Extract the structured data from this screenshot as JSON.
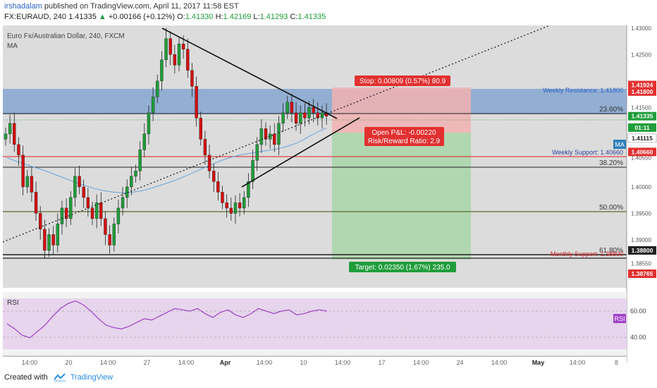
{
  "header": {
    "user": "irshadalam",
    "published_text": "published on TradingView.com, April 11, 2017 11:58 EST",
    "symbol": "FX:EURAUD, 240",
    "last_price": "1.41335",
    "change": "+0.00166 (+0.12%)",
    "o_label": "O:",
    "o_value": "1.41330",
    "h_label": "H:",
    "h_value": "1.42169",
    "l_label": "L:",
    "l_value": "1.41293",
    "c_label": "C:",
    "c_value": "1.41335"
  },
  "legend": {
    "title": "Euro Fx/Australian Dollar, 240, FXCM",
    "indicator": "MA"
  },
  "rsi_pane": {
    "label": "RSI",
    "badge": "RSI"
  },
  "footer": {
    "created_with": "Created with",
    "brand": "TradingView"
  },
  "colors": {
    "bull": "#1f9d3a",
    "bear": "#d40f0f",
    "ma": "#6aa2d6",
    "resistance_zone": "#7fa3cf",
    "stop_zone": "#f2b2b2",
    "target_zone": "#a8d6a8",
    "rsi": "#a040c8",
    "rsi_bg": "#e6d5ec",
    "accent": "#2962c7"
  },
  "chart_data": {
    "type": "candlestick",
    "symbol": "FX:EURAUD",
    "interval": "240",
    "ylim": [
      1.382,
      1.4305
    ],
    "x_ticks": [
      "14:00",
      "20",
      "14:00",
      "27",
      "14:00",
      "Apr",
      "14:00",
      "10",
      "14:00",
      "17",
      "14:00",
      "24",
      "14:00",
      "May",
      "14:00",
      "8"
    ],
    "y_ticks": [
      1.43,
      1.425,
      1.415,
      1.4055,
      1.4,
      1.395,
      1.39,
      1.3855
    ],
    "price_labels": [
      {
        "value": "1.41924",
        "kind": "stop"
      },
      {
        "value": "1.41800",
        "kind": "resistance"
      },
      {
        "value": "1.41335",
        "kind": "last"
      },
      {
        "value": "01:11",
        "kind": "countdown"
      },
      {
        "value": "1.41115",
        "kind": "ma"
      },
      {
        "value": "1.40660",
        "kind": "support"
      },
      {
        "value": "1.38800",
        "kind": "monthly"
      },
      {
        "value": "1.38765",
        "kind": "target"
      }
    ],
    "ma_badge": "MA",
    "fib_levels": [
      {
        "label": "23.60%",
        "value": 1.4162
      },
      {
        "label": "38.20%",
        "value": 1.4046
      },
      {
        "label": "50.00%",
        "value": 1.3966
      },
      {
        "label": "61.80%",
        "value": 1.3878
      }
    ],
    "levels": [
      {
        "label": "Weekly Resistance: 1.41800",
        "value": 1.418
      },
      {
        "label": "Weekly Support: 1.40660",
        "value": 1.4066
      },
      {
        "label": "Monthly Support: 1.38800",
        "value": 1.388
      }
    ],
    "position": {
      "entry": 1.41115,
      "stop": 1.41924,
      "target": 1.38765,
      "stop_label": "Stop: 0.00809 (0.57%) 80.9",
      "pnl_label": "Open P&L: -0.00220",
      "rr_label": "Risk/Reward Ratio: 2.9",
      "target_label": "Target: 0.02350 (1.67%) 235.0"
    },
    "series": [
      {
        "name": "EURAUD",
        "close": [
          1.41,
          1.412,
          1.408,
          1.406,
          1.4,
          1.402,
          1.399,
          1.395,
          1.392,
          1.388,
          1.391,
          1.389,
          1.393,
          1.396,
          1.394,
          1.398,
          1.402,
          1.4,
          1.398,
          1.396,
          1.394,
          1.397,
          1.394,
          1.391,
          1.389,
          1.393,
          1.396,
          1.398,
          1.4,
          1.402,
          1.403,
          1.407,
          1.41,
          1.414,
          1.417,
          1.42,
          1.424,
          1.428,
          1.425,
          1.423,
          1.427,
          1.426,
          1.422,
          1.419,
          1.413,
          1.409,
          1.406,
          1.403,
          1.401,
          1.399,
          1.397,
          1.396,
          1.395,
          1.397,
          1.396,
          1.398,
          1.401,
          1.405,
          1.408,
          1.411,
          1.409,
          1.41,
          1.408,
          1.412,
          1.414,
          1.416,
          1.414,
          1.412,
          1.414,
          1.413,
          1.415,
          1.414,
          1.413,
          1.414,
          1.41335
        ]
      },
      {
        "name": "MA",
        "values": [
          1.4055,
          1.4048,
          1.4042,
          1.4036,
          1.403,
          1.4023,
          1.4016,
          1.4009,
          1.4003,
          1.3997,
          1.3993,
          1.399,
          1.3989,
          1.399,
          1.3993,
          1.3998,
          1.4004,
          1.401,
          1.4017,
          1.4025,
          1.4033,
          1.4041,
          1.4049,
          1.4055,
          1.406,
          1.4063,
          1.4066,
          1.4069,
          1.4072,
          1.4077,
          1.4083,
          1.4093,
          1.4103,
          1.4111
        ]
      },
      {
        "name": "RSI",
        "values": [
          50,
          46,
          41,
          39,
          44,
          49,
          56,
          62,
          66,
          68,
          65,
          60,
          54,
          49,
          47,
          46,
          48,
          51,
          54,
          53,
          56,
          59,
          62,
          61,
          60,
          62,
          58,
          55,
          59,
          61,
          57,
          55,
          58,
          62,
          60,
          58,
          60,
          61,
          57,
          58,
          60,
          61,
          60
        ]
      }
    ],
    "rsi_ticks": [
      60.0,
      40.0
    ]
  }
}
